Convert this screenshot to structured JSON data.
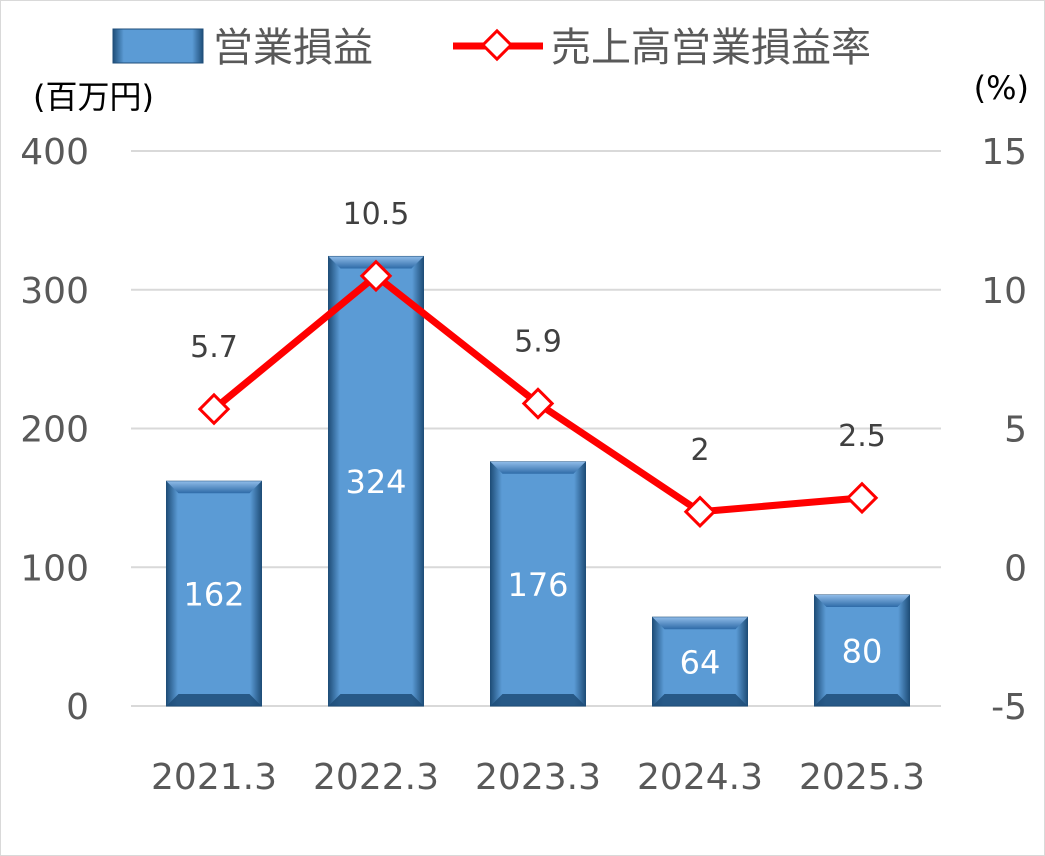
{
  "chart_data": {
    "type": "bar",
    "categories": [
      "2021.3",
      "2022.3",
      "2023.3",
      "2024.3",
      "2025.3"
    ],
    "series": [
      {
        "name": "営業損益",
        "type": "bar",
        "axis": "left",
        "values": [
          162,
          324,
          176,
          64,
          80
        ]
      },
      {
        "name": "売上高営業損益率",
        "type": "line",
        "axis": "right",
        "values": [
          5.7,
          10.5,
          5.9,
          2,
          2.5
        ]
      }
    ],
    "y_left": {
      "unit": "(百万円)",
      "ylim": [
        0,
        400
      ],
      "ticks": [
        0,
        100,
        200,
        300,
        400
      ]
    },
    "y_right": {
      "unit": "(%)",
      "ylim": [
        -5,
        15
      ],
      "ticks": [
        -5,
        0,
        5,
        10,
        15
      ]
    },
    "grid": true,
    "legend_position": "top",
    "colors": {
      "bar": "#5b9bd5",
      "line": "#ff0000",
      "marker_fill": "#ffffff",
      "grid": "#d9d9d9"
    }
  }
}
